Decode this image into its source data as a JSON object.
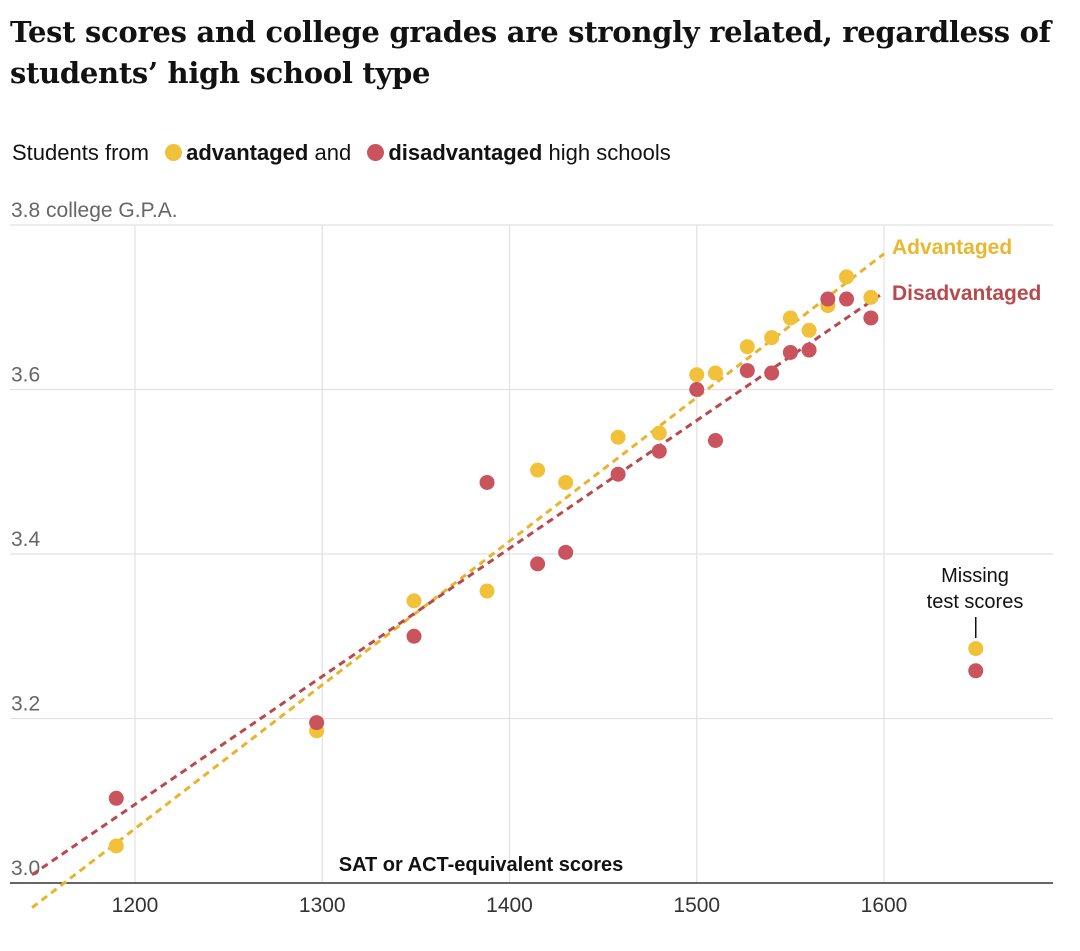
{
  "title": "Test scores and college grades are strongly related, regardless of students’ high school type",
  "legend": {
    "prefix": "Students from",
    "advantaged": "advantaged",
    "and": "and",
    "disadvantaged": "disadvantaged",
    "suffix": "high schools"
  },
  "colors": {
    "advantaged": "#f2c13a",
    "disadvantaged": "#c9545d",
    "advantaged_line": "#e8b42e",
    "disadvantaged_line": "#b84a4e",
    "grid": "#e2e2e2",
    "axis": "#333333"
  },
  "chart_data": {
    "type": "scatter",
    "xlabel": "SAT or ACT-equivalent scores",
    "ylabel": "college G.P.A.",
    "xlim": [
      1145,
      1690
    ],
    "ylim": [
      3.0,
      3.8
    ],
    "x_ticks": [
      1200,
      1300,
      1400,
      1500,
      1600
    ],
    "y_ticks": [
      {
        "value": 3.0,
        "label": "3.0"
      },
      {
        "value": 3.2,
        "label": "3.2"
      },
      {
        "value": 3.4,
        "label": "3.4"
      },
      {
        "value": 3.6,
        "label": "3.6"
      },
      {
        "value": 3.8,
        "label": "3.8 college G.P.A."
      }
    ],
    "grid": true,
    "series": [
      {
        "name": "Advantaged",
        "points": [
          [
            1190,
            3.045
          ],
          [
            1297,
            3.185
          ],
          [
            1349,
            3.343
          ],
          [
            1388,
            3.355
          ],
          [
            1415,
            3.502
          ],
          [
            1430,
            3.487
          ],
          [
            1458,
            3.542
          ],
          [
            1480,
            3.547
          ],
          [
            1500,
            3.618
          ],
          [
            1510,
            3.62
          ],
          [
            1527,
            3.652
          ],
          [
            1540,
            3.663
          ],
          [
            1550,
            3.687
          ],
          [
            1560,
            3.672
          ],
          [
            1570,
            3.702
          ],
          [
            1580,
            3.737
          ],
          [
            1593,
            3.712
          ]
        ],
        "trend": [
          [
            1145,
            2.97
          ],
          [
            1600,
            3.765
          ]
        ]
      },
      {
        "name": "Disadvantaged",
        "points": [
          [
            1190,
            3.103
          ],
          [
            1297,
            3.195
          ],
          [
            1349,
            3.3
          ],
          [
            1388,
            3.487
          ],
          [
            1415,
            3.388
          ],
          [
            1430,
            3.402
          ],
          [
            1458,
            3.497
          ],
          [
            1480,
            3.525
          ],
          [
            1500,
            3.6
          ],
          [
            1510,
            3.538
          ],
          [
            1527,
            3.623
          ],
          [
            1540,
            3.62
          ],
          [
            1550,
            3.645
          ],
          [
            1560,
            3.648
          ],
          [
            1570,
            3.71
          ],
          [
            1580,
            3.71
          ],
          [
            1593,
            3.687
          ]
        ],
        "trend": [
          [
            1145,
            3.01
          ],
          [
            1600,
            3.718
          ]
        ]
      }
    ],
    "missing": {
      "label_line1": "Missing",
      "label_line2": "test scores",
      "x": 1649,
      "advantaged": 3.285,
      "disadvantaged": 3.258
    }
  }
}
